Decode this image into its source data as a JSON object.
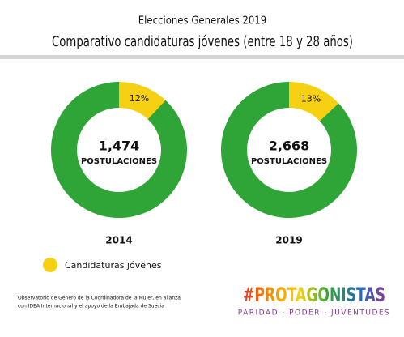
{
  "header": {
    "title": "Elecciones Generales 2019",
    "subtitle": "Comparativo  candidaturas jóvenes (entre 18 y 28 años)"
  },
  "chart_data": [
    {
      "type": "donut",
      "values": [
        12,
        88
      ],
      "value_labels": [
        "12%",
        null
      ],
      "colors": [
        "#f6d113",
        "#2fa537"
      ],
      "center": [
        "1,474",
        "POSTULACIONES"
      ],
      "caption": "2014"
    },
    {
      "type": "donut",
      "values": [
        13,
        87
      ],
      "value_labels": [
        "13%",
        null
      ],
      "colors": [
        "#f6d113",
        "#2fa537"
      ],
      "center": [
        "2,668",
        "POSTULACIONES"
      ],
      "caption": "2019"
    }
  ],
  "legend": {
    "label": "Candidaturas jóvenes",
    "color": "#f6d113"
  },
  "footer": {
    "note": [
      "Observatorio de Género de la Coordinadora de la Mujer, en alianza",
      "con IDEA Internacional y el apoyo de la Embajada de Suecia"
    ],
    "logo": "#PROTAGONISTAS",
    "tagline": "PARIDAD · PODER · JUVENTUDES"
  }
}
